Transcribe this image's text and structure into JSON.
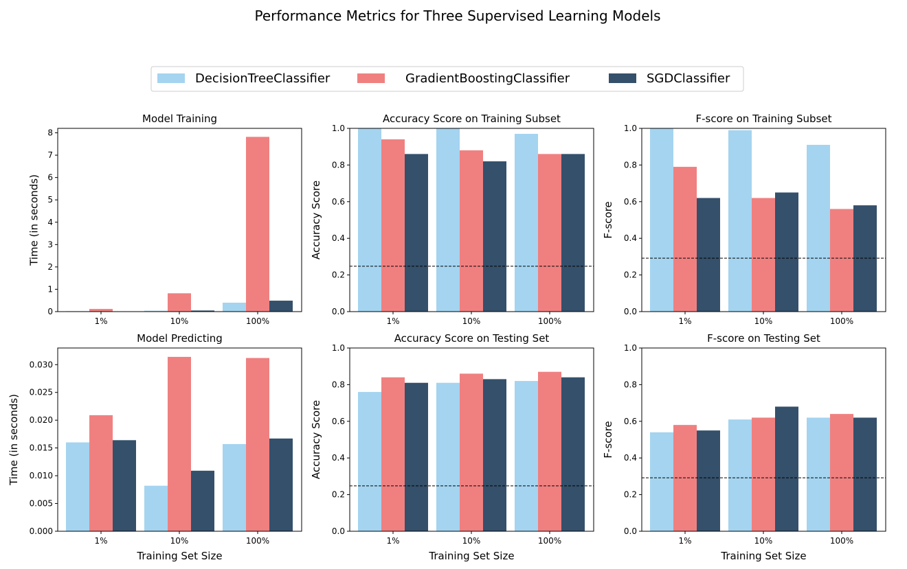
{
  "figure": {
    "suptitle": "Performance Metrics for Three Supervised Learning Models",
    "legend": {
      "placement": "upper center",
      "entries": [
        {
          "name": "DecisionTreeClassifier",
          "color": "#A4D4F0"
        },
        {
          "name": "GradientBoostingClassifier",
          "color": "#F08080"
        },
        {
          "name": "SGDClassifier",
          "color": "#34506B"
        }
      ]
    }
  },
  "chart_data": [
    {
      "type": "bar",
      "title": "Model Training",
      "xlabel": "",
      "ylabel": "Time (in seconds)",
      "categories": [
        "1%",
        "10%",
        "100%"
      ],
      "ylim": [
        0,
        8.2
      ],
      "yticks": [
        "0",
        "1",
        "2",
        "3",
        "4",
        "5",
        "6",
        "7",
        "8"
      ],
      "series": [
        {
          "name": "DecisionTreeClassifier",
          "values": [
            0.02,
            0.04,
            0.4
          ]
        },
        {
          "name": "GradientBoostingClassifier",
          "values": [
            0.12,
            0.82,
            7.82
          ]
        },
        {
          "name": "SGDClassifier",
          "values": [
            0.0,
            0.05,
            0.49
          ]
        }
      ],
      "baseline": null
    },
    {
      "type": "bar",
      "title": "Accuracy Score on Training Subset",
      "xlabel": "",
      "ylabel": "Accuracy Score",
      "categories": [
        "1%",
        "10%",
        "100%"
      ],
      "ylim": [
        0,
        1.0
      ],
      "yticks": [
        "0.0",
        "0.2",
        "0.4",
        "0.6",
        "0.8",
        "1.0"
      ],
      "series": [
        {
          "name": "DecisionTreeClassifier",
          "values": [
            1.0,
            1.0,
            0.97
          ]
        },
        {
          "name": "GradientBoostingClassifier",
          "values": [
            0.94,
            0.88,
            0.86
          ]
        },
        {
          "name": "SGDClassifier",
          "values": [
            0.86,
            0.82,
            0.86
          ]
        }
      ],
      "baseline": 0.2478
    },
    {
      "type": "bar",
      "title": "F-score on Training Subset",
      "xlabel": "",
      "ylabel": "F-score",
      "categories": [
        "1%",
        "10%",
        "100%"
      ],
      "ylim": [
        0,
        1.0
      ],
      "yticks": [
        "0.0",
        "0.2",
        "0.4",
        "0.6",
        "0.8",
        "1.0"
      ],
      "series": [
        {
          "name": "DecisionTreeClassifier",
          "values": [
            1.0,
            0.99,
            0.91
          ]
        },
        {
          "name": "GradientBoostingClassifier",
          "values": [
            0.79,
            0.62,
            0.56
          ]
        },
        {
          "name": "SGDClassifier",
          "values": [
            0.62,
            0.65,
            0.58
          ]
        }
      ],
      "baseline": 0.2917
    },
    {
      "type": "bar",
      "title": "Model Predicting",
      "xlabel": "Training Set Size",
      "ylabel": "Time (in seconds)",
      "categories": [
        "1%",
        "10%",
        "100%"
      ],
      "ylim": [
        0,
        0.033
      ],
      "yticks": [
        "0.000",
        "0.005",
        "0.010",
        "0.015",
        "0.020",
        "0.025",
        "0.030"
      ],
      "series": [
        {
          "name": "DecisionTreeClassifier",
          "values": [
            0.016,
            0.0082,
            0.0157
          ]
        },
        {
          "name": "GradientBoostingClassifier",
          "values": [
            0.0209,
            0.0314,
            0.0312
          ]
        },
        {
          "name": "SGDClassifier",
          "values": [
            0.0164,
            0.0109,
            0.0167
          ]
        }
      ],
      "baseline": null
    },
    {
      "type": "bar",
      "title": "Accuracy Score on Testing Set",
      "xlabel": "Training Set Size",
      "ylabel": "Accuracy Score",
      "categories": [
        "1%",
        "10%",
        "100%"
      ],
      "ylim": [
        0,
        1.0
      ],
      "yticks": [
        "0.0",
        "0.2",
        "0.4",
        "0.6",
        "0.8",
        "1.0"
      ],
      "series": [
        {
          "name": "DecisionTreeClassifier",
          "values": [
            0.76,
            0.81,
            0.82
          ]
        },
        {
          "name": "GradientBoostingClassifier",
          "values": [
            0.84,
            0.86,
            0.87
          ]
        },
        {
          "name": "SGDClassifier",
          "values": [
            0.81,
            0.83,
            0.84
          ]
        }
      ],
      "baseline": 0.2478
    },
    {
      "type": "bar",
      "title": "F-score on Testing Set",
      "xlabel": "Training Set Size",
      "ylabel": "F-score",
      "categories": [
        "1%",
        "10%",
        "100%"
      ],
      "ylim": [
        0,
        1.0
      ],
      "yticks": [
        "0.0",
        "0.2",
        "0.4",
        "0.6",
        "0.8",
        "1.0"
      ],
      "series": [
        {
          "name": "DecisionTreeClassifier",
          "values": [
            0.54,
            0.61,
            0.62
          ]
        },
        {
          "name": "GradientBoostingClassifier",
          "values": [
            0.58,
            0.62,
            0.64
          ]
        },
        {
          "name": "SGDClassifier",
          "values": [
            0.55,
            0.68,
            0.62
          ]
        }
      ],
      "baseline": 0.2917
    }
  ]
}
